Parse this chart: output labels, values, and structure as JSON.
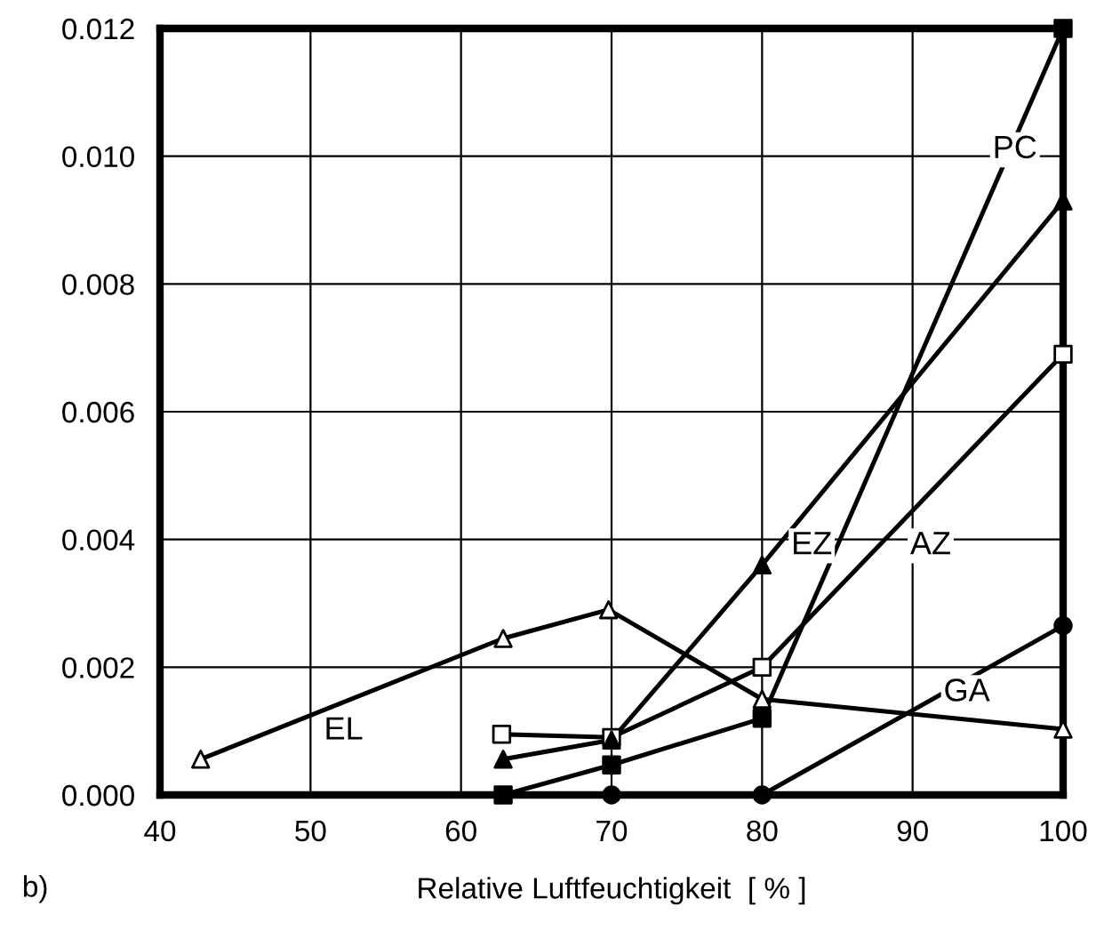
{
  "chart_data": {
    "type": "line",
    "xlabel": "Relative Luftfeuchtigkeit  [ % ]",
    "xlim": [
      40,
      100
    ],
    "xticks": [
      40,
      50,
      60,
      70,
      80,
      90,
      100
    ],
    "ylim": [
      0,
      0.012
    ],
    "yticks": [
      {
        "value": 0,
        "label": "0.000"
      },
      {
        "value": 0.002,
        "label": "0.002"
      },
      {
        "value": 0.004,
        "label": "0.004"
      },
      {
        "value": 0.006,
        "label": "0.006"
      },
      {
        "value": 0.008,
        "label": "0.008"
      },
      {
        "value": 0.01,
        "label": "0.010"
      },
      {
        "value": 0.012,
        "label": "0.012"
      }
    ],
    "grid": true,
    "line_style": "solid",
    "series": [
      {
        "color": "#000000",
        "marker": "triangle",
        "colors": [
          "#ffffff",
          "#ffffff",
          "#ffffff",
          "#ffffff",
          "#ffffff"
        ],
        "x": [
          42.7,
          62.8,
          69.8,
          80,
          100
        ],
        "values": [
          0.00056,
          0.00245,
          0.0029,
          0.0015,
          0.00103
        ]
      },
      {
        "color": "#000000",
        "marker": "square",
        "colors": [
          "#ffffff",
          "#ffffff",
          "#ffffff",
          "#ffffff"
        ],
        "x": [
          62.7,
          70,
          80,
          100
        ],
        "values": [
          0.00095,
          0.0009,
          0.002,
          0.0069
        ]
      },
      {
        "color": "#000000",
        "marker": "triangle",
        "colors": [
          "#000000",
          "#000000",
          "#000000",
          "#000000"
        ],
        "x": [
          62.8,
          70,
          80,
          100
        ],
        "values": [
          0.00056,
          0.00086,
          0.0036,
          0.0093
        ]
      },
      {
        "color": "#000000",
        "marker": "square",
        "colors": [
          "#000000",
          "#000000",
          "#000000",
          "#000000"
        ],
        "x": [
          62.8,
          70,
          80,
          100
        ],
        "values": [
          0,
          0.00047,
          0.0012,
          0.012
        ]
      },
      {
        "color": "#000000",
        "marker": "circle",
        "colors": [
          "#000000",
          "#000000",
          "#000000"
        ],
        "x": [
          70,
          80,
          100
        ],
        "values": [
          0,
          0,
          0.00265
        ]
      }
    ],
    "annotations": [
      {
        "text": "EL",
        "x": 52.2,
        "y": 0.001
      },
      {
        "text": "AZ",
        "x": 91.2,
        "y": 0.0039
      },
      {
        "text": "EZ",
        "x": 83.3,
        "y": 0.0039
      },
      {
        "text": "PC",
        "x": 96.8,
        "y": 0.0101
      },
      {
        "text": "GA",
        "x": 93.6,
        "y": 0.0016
      },
      "b)"
    ]
  }
}
